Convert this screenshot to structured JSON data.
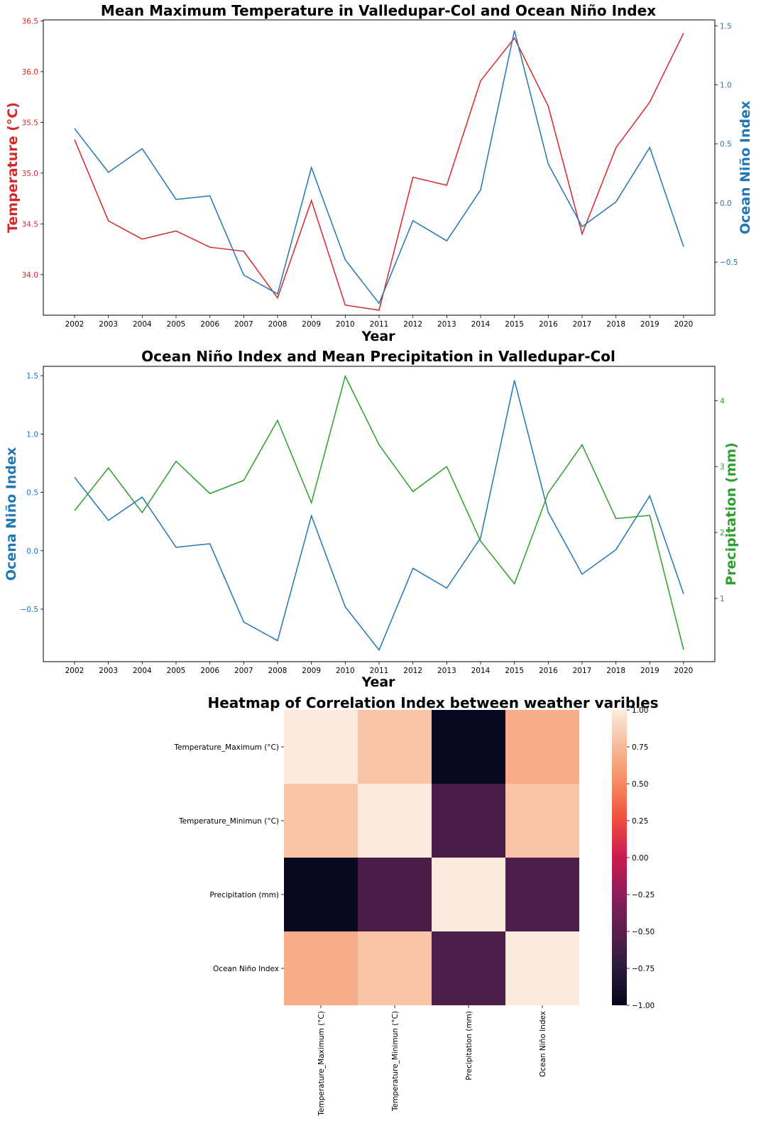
{
  "chart_data": [
    {
      "type": "line",
      "title": "Mean Maximum Temperature in Valledupar-Col and Ocean Niño Index",
      "xlabel": "Year",
      "ylabel_left": "Temperature (°C)",
      "ylabel_right": "Ocean Niño Index",
      "x": [
        "2002",
        "2003",
        "2004",
        "2005",
        "2006",
        "2007",
        "2008",
        "2009",
        "2010",
        "2011",
        "2012",
        "2013",
        "2014",
        "2015",
        "2016",
        "2017",
        "2018",
        "2019",
        "2020"
      ],
      "ylim_left": [
        33.6,
        36.51
      ],
      "ylim_right": [
        -0.95,
        1.55
      ],
      "yticks_left": [
        "34.0",
        "34.5",
        "35.0",
        "35.5",
        "36.0",
        "36.5"
      ],
      "yticks_right": [
        "−0.5",
        "0.0",
        "0.5",
        "1.0",
        "1.5"
      ],
      "grid": false,
      "series": [
        {
          "axis": "left",
          "color": "#d62728",
          "values": [
            35.33,
            34.53,
            34.35,
            34.43,
            34.27,
            34.23,
            33.77,
            34.73,
            33.7,
            33.65,
            34.96,
            34.88,
            35.91,
            36.33,
            35.66,
            34.4,
            35.25,
            35.7,
            36.38
          ]
        },
        {
          "axis": "right",
          "color": "#1f77b4",
          "values": [
            0.63,
            0.26,
            0.46,
            0.03,
            0.06,
            -0.61,
            -0.77,
            0.3,
            -0.48,
            -0.85,
            -0.15,
            -0.32,
            0.11,
            1.46,
            0.33,
            -0.2,
            0.01,
            0.47,
            -0.37
          ]
        }
      ]
    },
    {
      "type": "line",
      "title": "Ocean Niño Index and Mean Precipitation in Valledupar-Col",
      "xlabel": "Year",
      "ylabel_left": "Ocena Niño Index",
      "ylabel_right": "Precipitation (mm)",
      "x": [
        "2002",
        "2003",
        "2004",
        "2005",
        "2006",
        "2007",
        "2008",
        "2009",
        "2010",
        "2011",
        "2012",
        "2013",
        "2014",
        "2015",
        "2016",
        "2017",
        "2018",
        "2019",
        "2020"
      ],
      "ylim_left": [
        -0.95,
        1.58
      ],
      "ylim_right": [
        0.04,
        4.52
      ],
      "yticks_left": [
        "−0.5",
        "0.0",
        "0.5",
        "1.0",
        "1.5"
      ],
      "yticks_right": [
        "1",
        "2",
        "3",
        "4"
      ],
      "grid": false,
      "series": [
        {
          "axis": "left",
          "color": "#1f77b4",
          "values": [
            0.63,
            0.26,
            0.46,
            0.03,
            0.06,
            -0.61,
            -0.77,
            0.3,
            -0.48,
            -0.85,
            -0.15,
            -0.32,
            0.11,
            1.46,
            0.33,
            -0.2,
            0.01,
            0.47,
            -0.37
          ]
        },
        {
          "axis": "right",
          "color": "#2ca02c",
          "values": [
            2.33,
            2.98,
            2.3,
            3.08,
            2.59,
            2.79,
            3.7,
            2.45,
            4.37,
            3.33,
            2.62,
            3.0,
            1.87,
            1.22,
            2.6,
            3.33,
            2.21,
            2.26,
            0.22
          ]
        }
      ]
    },
    {
      "type": "heatmap",
      "title": "Heatmap of Correlation Index between weather varibles",
      "rows": [
        "Temperature_Maximum (°C)",
        "Temperature_Minimun (°C)",
        "Precipitation (mm)",
        "Ocean Niño Index"
      ],
      "cols": [
        "Temperature_Maximum (°C)",
        "Temperature_Minimun (°C)",
        "Precipitation (mm)",
        "Ocean Niño Index"
      ],
      "values": [
        [
          1.0,
          0.8,
          -0.97,
          0.68
        ],
        [
          0.8,
          1.0,
          -0.58,
          0.8
        ],
        [
          -0.97,
          -0.58,
          1.0,
          -0.57
        ],
        [
          0.68,
          0.8,
          -0.57,
          1.0
        ]
      ],
      "vmin": -1.0,
      "vmax": 1.0,
      "colorbar_ticks": [
        "−1.00",
        "−0.75",
        "−0.50",
        "−0.25",
        "0.00",
        "0.25",
        "0.50",
        "0.75",
        "1.00"
      ],
      "colormap": "rocket"
    }
  ]
}
